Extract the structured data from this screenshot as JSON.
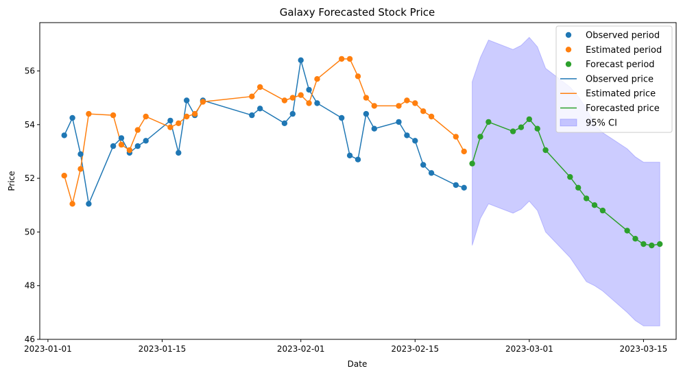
{
  "chart_data": {
    "type": "line",
    "title": "Galaxy Forecasted Stock Price",
    "xlabel": "Date",
    "ylabel": "Price",
    "xlim": [
      "2022-12-31",
      "2023-03-19"
    ],
    "ylim": [
      46.0,
      57.8
    ],
    "x_ticks": [
      "2023-01-01",
      "2023-01-15",
      "2023-02-01",
      "2023-02-15",
      "2023-03-01",
      "2023-03-15"
    ],
    "y_ticks": [
      46,
      48,
      50,
      52,
      54,
      56
    ],
    "grid": false,
    "legend_position": "top-right",
    "colors": {
      "observed": "#1f77b4",
      "estimated": "#ff7f0e",
      "forecast": "#2ca02c",
      "ci_fill": "#0000ff",
      "ci_edge": "#0000ff"
    },
    "legend": [
      {
        "label": "Observed period",
        "kind": "marker",
        "color_key": "observed"
      },
      {
        "label": "Estimated period",
        "kind": "marker",
        "color_key": "estimated"
      },
      {
        "label": "Forecast period",
        "kind": "marker",
        "color_key": "forecast"
      },
      {
        "label": "Observed price",
        "kind": "line",
        "color_key": "observed"
      },
      {
        "label": "Estimated price",
        "kind": "line",
        "color_key": "estimated"
      },
      {
        "label": "Forecasted price",
        "kind": "line",
        "color_key": "forecast"
      },
      {
        "label": "95% CI",
        "kind": "patch",
        "color_key": "ci_fill"
      }
    ],
    "series": [
      {
        "key": "observed",
        "x": [
          "2023-01-03",
          "2023-01-04",
          "2023-01-05",
          "2023-01-06",
          "2023-01-09",
          "2023-01-10",
          "2023-01-11",
          "2023-01-12",
          "2023-01-13",
          "2023-01-16",
          "2023-01-17",
          "2023-01-18",
          "2023-01-19",
          "2023-01-20",
          "2023-01-26",
          "2023-01-27",
          "2023-01-30",
          "2023-01-31",
          "2023-02-01",
          "2023-02-02",
          "2023-02-03",
          "2023-02-06",
          "2023-02-07",
          "2023-02-08",
          "2023-02-09",
          "2023-02-10",
          "2023-02-13",
          "2023-02-14",
          "2023-02-15",
          "2023-02-16",
          "2023-02-17",
          "2023-02-20",
          "2023-02-21"
        ],
        "y": [
          53.6,
          54.25,
          52.9,
          51.05,
          53.2,
          53.5,
          52.95,
          53.2,
          53.4,
          54.15,
          52.95,
          54.9,
          54.35,
          54.9,
          54.35,
          54.6,
          54.05,
          54.4,
          56.4,
          55.3,
          54.8,
          54.25,
          52.85,
          52.7,
          54.4,
          53.85,
          54.1,
          53.6,
          53.4,
          52.5,
          52.2,
          51.75,
          51.65
        ]
      },
      {
        "key": "estimated",
        "x": [
          "2023-01-03",
          "2023-01-04",
          "2023-01-05",
          "2023-01-06",
          "2023-01-09",
          "2023-01-10",
          "2023-01-11",
          "2023-01-12",
          "2023-01-13",
          "2023-01-16",
          "2023-01-17",
          "2023-01-18",
          "2023-01-19",
          "2023-01-20",
          "2023-01-26",
          "2023-01-27",
          "2023-01-30",
          "2023-01-31",
          "2023-02-01",
          "2023-02-02",
          "2023-02-03",
          "2023-02-06",
          "2023-02-07",
          "2023-02-08",
          "2023-02-09",
          "2023-02-10",
          "2023-02-13",
          "2023-02-14",
          "2023-02-15",
          "2023-02-16",
          "2023-02-17",
          "2023-02-20",
          "2023-02-21"
        ],
        "y": [
          52.1,
          51.05,
          52.35,
          54.4,
          54.35,
          53.25,
          53.05,
          53.8,
          54.3,
          53.9,
          54.05,
          54.3,
          54.4,
          54.85,
          55.05,
          55.4,
          54.9,
          55.0,
          55.1,
          54.8,
          55.7,
          56.45,
          56.45,
          55.8,
          55.0,
          54.7,
          54.7,
          54.9,
          54.8,
          54.5,
          54.3,
          53.55,
          53.0
        ]
      },
      {
        "key": "forecast",
        "x": [
          "2023-02-22",
          "2023-02-23",
          "2023-02-24",
          "2023-02-27",
          "2023-02-28",
          "2023-03-01",
          "2023-03-02",
          "2023-03-03",
          "2023-03-06",
          "2023-03-07",
          "2023-03-08",
          "2023-03-09",
          "2023-03-10",
          "2023-03-13",
          "2023-03-14",
          "2023-03-15",
          "2023-03-16",
          "2023-03-17"
        ],
        "y": [
          52.55,
          53.55,
          54.1,
          53.75,
          53.9,
          54.2,
          53.85,
          53.05,
          52.05,
          51.65,
          51.25,
          51.0,
          50.8,
          50.05,
          49.75,
          49.55,
          49.5,
          49.55
        ]
      }
    ],
    "ci": {
      "x": [
        "2023-02-22",
        "2023-02-23",
        "2023-02-24",
        "2023-02-27",
        "2023-02-28",
        "2023-03-01",
        "2023-03-02",
        "2023-03-03",
        "2023-03-06",
        "2023-03-07",
        "2023-03-08",
        "2023-03-09",
        "2023-03-10",
        "2023-03-13",
        "2023-03-14",
        "2023-03-15",
        "2023-03-16",
        "2023-03-17"
      ],
      "upper": [
        55.6,
        56.5,
        57.15,
        56.8,
        56.95,
        57.25,
        56.9,
        56.1,
        55.4,
        55.05,
        54.6,
        54.0,
        53.7,
        53.1,
        52.8,
        52.6,
        52.6,
        52.6
      ],
      "lower": [
        49.5,
        50.5,
        51.05,
        50.7,
        50.85,
        51.15,
        50.8,
        50.0,
        49.05,
        48.6,
        48.15,
        48.0,
        47.8,
        47.0,
        46.7,
        46.5,
        46.5,
        46.5
      ]
    }
  }
}
